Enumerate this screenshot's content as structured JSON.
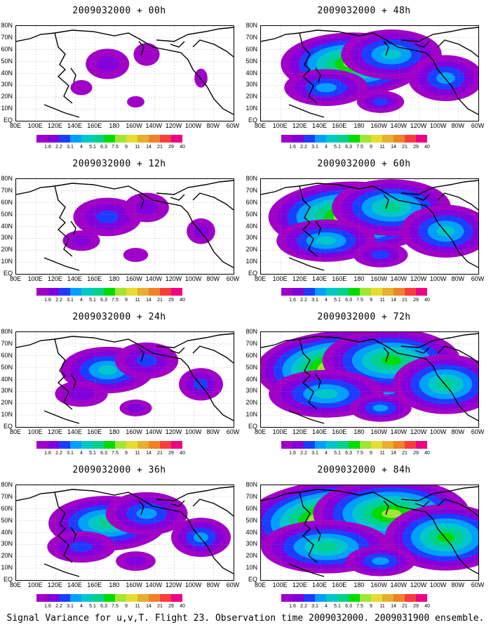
{
  "chart_data": [
    {
      "type": "heatmap",
      "title": "2009032000 + 00h",
      "lead_hours": 0
    },
    {
      "type": "heatmap",
      "title": "2009032000 + 12h",
      "lead_hours": 12
    },
    {
      "type": "heatmap",
      "title": "2009032000 + 24h",
      "lead_hours": 24
    },
    {
      "type": "heatmap",
      "title": "2009032000 + 36h",
      "lead_hours": 36
    },
    {
      "type": "heatmap",
      "title": "2009032000 + 48h",
      "lead_hours": 48
    },
    {
      "type": "heatmap",
      "title": "2009032000 + 60h",
      "lead_hours": 60
    },
    {
      "type": "heatmap",
      "title": "2009032000 + 72h",
      "lead_hours": 72
    },
    {
      "type": "heatmap",
      "title": "2009032000 + 84h",
      "lead_hours": 84
    }
  ],
  "y_ticks": [
    "80N",
    "70N",
    "60N",
    "50N",
    "40N",
    "30N",
    "20N",
    "10N",
    "EQ"
  ],
  "x_ticks": [
    "80E",
    "100E",
    "120E",
    "140E",
    "160E",
    "180",
    "160W",
    "140W",
    "120W",
    "100W",
    "80W",
    "60W"
  ],
  "colorbar": {
    "labels": [
      "1.6",
      "2.2",
      "3.1",
      "4",
      "5.1",
      "6.3",
      "7.5",
      "9",
      "11",
      "14",
      "21",
      "29",
      "40"
    ],
    "colors": [
      "#a000c8",
      "#8200dc",
      "#1e3cff",
      "#00a0ff",
      "#00c8c8",
      "#00d28c",
      "#00dc00",
      "#a0e632",
      "#e6dc32",
      "#e6af2d",
      "#f08228",
      "#fa3c3c",
      "#f00082"
    ]
  },
  "caption": "Signal Variance for u,v,T. Flight 23. Observation time 2009032000. 2009031900 ensemble."
}
